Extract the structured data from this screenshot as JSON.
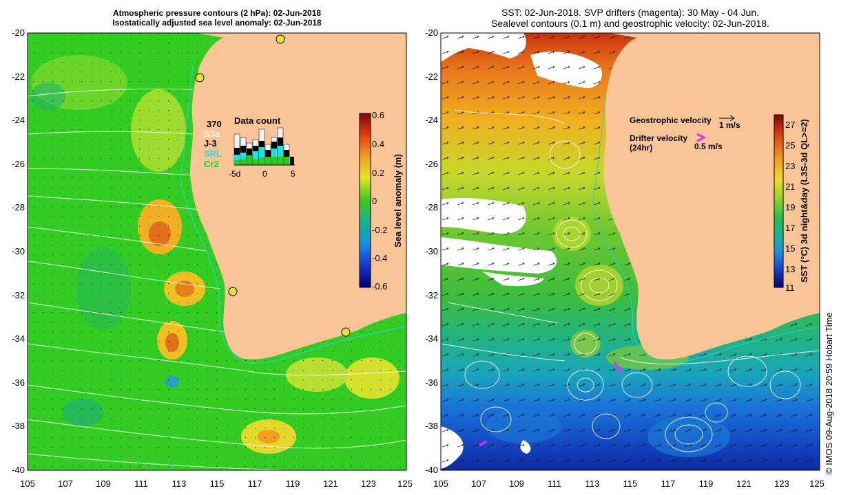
{
  "left_panel": {
    "title_line1": "Atmospheric pressure contours (2 hPa): 02-Jun-2018",
    "title_line2": "Isostatically adjusted sea level anomaly: 02-Jun-2018",
    "y_ticks": [
      "-20",
      "-22",
      "-24",
      "-26",
      "-28",
      "-30",
      "-32",
      "-34",
      "-36",
      "-38",
      "-40"
    ],
    "x_ticks": [
      "105",
      "107",
      "109",
      "111",
      "113",
      "115",
      "117",
      "119",
      "121",
      "123",
      "125"
    ],
    "colorbar": {
      "label": "Sea level anomaly (m)",
      "ticks": [
        "0.6",
        "0.4",
        "0.2",
        "0",
        "-0.2",
        "-0.4",
        "-0.6"
      ]
    },
    "data_count": {
      "title": "Data count",
      "total": "370",
      "legend": [
        {
          "name": "S3a",
          "color": "#f2f2f2"
        },
        {
          "name": "J-3",
          "color": "#000000"
        },
        {
          "name": "SRL",
          "color": "#17e3e3"
        },
        {
          "name": "Cr2",
          "color": "#22d022"
        }
      ],
      "axis_ticks": [
        "-5d",
        "0",
        "5"
      ]
    }
  },
  "right_panel": {
    "title_line1": "SST: 02-Jun-2018. SVP drifters (magenta): 30 May - 04 Jun.",
    "title_line2": "Sealevel contours (0.1 m) and geostrophic velocity: 02-Jun-2018.",
    "y_ticks": [
      "-20",
      "-22",
      "-24",
      "-26",
      "-28",
      "-30",
      "-32",
      "-34",
      "-36",
      "-38",
      "-40"
    ],
    "x_ticks": [
      "105",
      "107",
      "109",
      "111",
      "113",
      "115",
      "117",
      "119",
      "121",
      "123",
      "125"
    ],
    "legend": {
      "geo_label": "Geostrophic velocity",
      "geo_speed": "1 m/s",
      "drifter_label": "Drifter velocity",
      "drifter_sub": "(24hr)",
      "drifter_speed": "0.5 m/s"
    },
    "colorbar": {
      "label": "SST (°C) 3d night&day (L3S-3d QL>=2)",
      "ticks": [
        "27",
        "25",
        "23",
        "21",
        "19",
        "17",
        "15",
        "13",
        "11"
      ]
    }
  },
  "footer": {
    "copyright": "© IMOS 09-Aug-2018 20:59 Hobart Time"
  },
  "colors": {
    "land": "#f9c596",
    "sla_green": "#33cc22",
    "drifter": "#ff22ff"
  }
}
